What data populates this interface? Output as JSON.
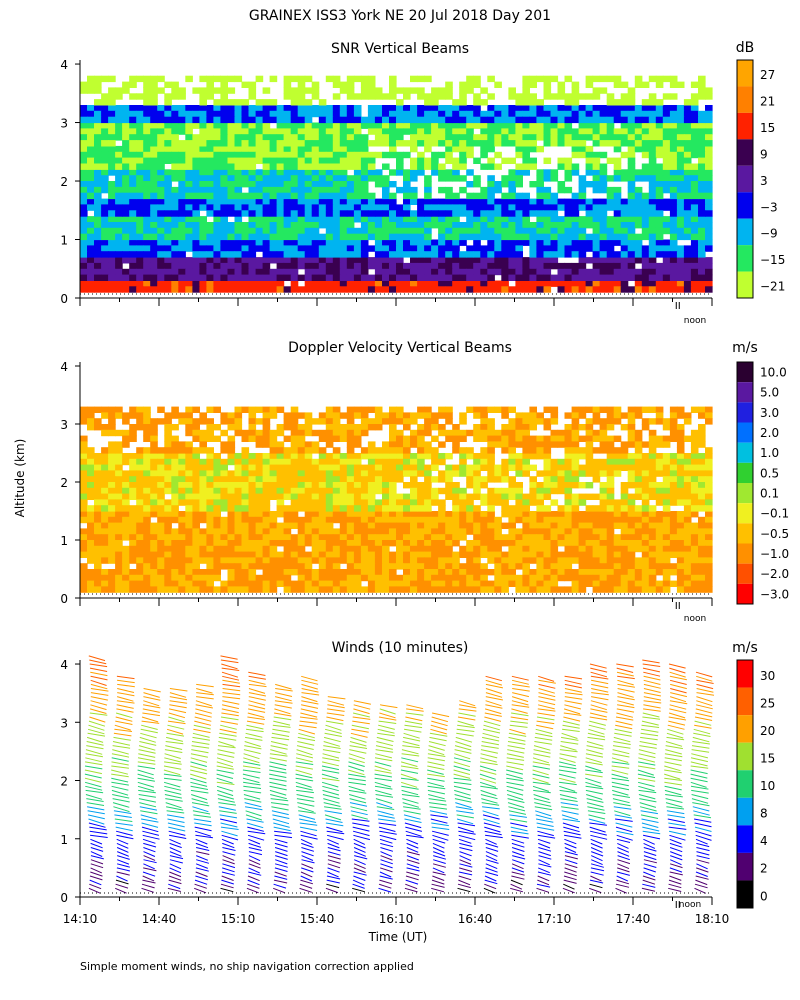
{
  "figure": {
    "title": "GRAINEX ISS3 York NE  20 Jul 2018 Day 201",
    "ylabel": "Altitude (km)",
    "xlabel": "Time (UT)",
    "footnote": "Simple moment winds, no ship navigation correction applied",
    "noon_label": "noon"
  },
  "chart_data": [
    {
      "type": "heatmap",
      "title": "SNR Vertical Beams",
      "unit": "dB",
      "ylim": [
        0,
        4
      ],
      "yticks": [
        "0",
        "1",
        "2",
        "3",
        "4"
      ],
      "xlim": [
        "14:10",
        "18:10"
      ],
      "colorbar": {
        "labels": [
          "27",
          "21",
          "15",
          "9",
          "3",
          "−3",
          "−9",
          "−15",
          "−21"
        ],
        "colors": [
          "#ffa500",
          "#ff8000",
          "#ff2200",
          "#3a0050",
          "#5a18a0",
          "#0000ee",
          "#00b4f0",
          "#24e860",
          "#c0ff30"
        ]
      },
      "layers": [
        {
          "from_km": 0.1,
          "to_km": 0.3,
          "value": 18
        },
        {
          "from_km": 0.3,
          "to_km": 0.7,
          "value": 8
        },
        {
          "from_km": 0.7,
          "to_km": 1.0,
          "value": -3
        },
        {
          "from_km": 1.0,
          "to_km": 1.4,
          "value": -9
        },
        {
          "from_km": 1.4,
          "to_km": 1.7,
          "value": -3
        },
        {
          "from_km": 1.7,
          "to_km": 2.2,
          "value": -9
        },
        {
          "from_km": 2.2,
          "to_km": 2.6,
          "value": -15
        },
        {
          "from_km": 2.6,
          "to_km": 3.0,
          "value": -15
        },
        {
          "from_km": 3.0,
          "to_km": 3.3,
          "value": -3
        },
        {
          "from_km": 3.3,
          "to_km": 3.8,
          "value": -21
        }
      ]
    },
    {
      "type": "heatmap",
      "title": "Doppler Velocity Vertical Beams",
      "unit": "m/s",
      "ylim": [
        0,
        4
      ],
      "yticks": [
        "0",
        "1",
        "2",
        "3",
        "4"
      ],
      "xlim": [
        "14:10",
        "18:10"
      ],
      "colorbar": {
        "labels": [
          "10.0",
          "5.0",
          "3.0",
          "2.0",
          "1.0",
          "0.5",
          "0.1",
          "−0.1",
          "−0.5",
          "−1.0",
          "−2.0",
          "−3.0"
        ],
        "colors": [
          "#2a0030",
          "#5a18a0",
          "#2020e0",
          "#0070ff",
          "#00c0e0",
          "#30d030",
          "#a0e830",
          "#f0f020",
          "#ffc000",
          "#ff9000",
          "#ff5000",
          "#ff0000"
        ]
      },
      "layers": [
        {
          "from_km": 0.1,
          "to_km": 1.5,
          "value": -0.5
        },
        {
          "from_km": 1.5,
          "to_km": 2.5,
          "value": -0.1
        },
        {
          "from_km": 2.5,
          "to_km": 3.3,
          "value": -0.5
        }
      ]
    },
    {
      "type": "barbs",
      "title": "Winds (10 minutes)",
      "unit": "m/s",
      "ylim": [
        0,
        4
      ],
      "yticks": [
        "0",
        "1",
        "2",
        "3",
        "4"
      ],
      "xticks": [
        "14:10",
        "14:40",
        "15:10",
        "15:40",
        "16:10",
        "16:40",
        "17:10",
        "17:40",
        "18:10"
      ],
      "xlim": [
        "14:10",
        "18:10"
      ],
      "colorbar": {
        "labels": [
          "30",
          "25",
          "20",
          "15",
          "10",
          "8",
          "4",
          "2",
          "0"
        ],
        "colors": [
          "#ff0000",
          "#ff6000",
          "#ffa000",
          "#a0e030",
          "#20d070",
          "#00a0f0",
          "#0000ff",
          "#500070",
          "#000000"
        ]
      },
      "profiles": [
        {
          "time": "14:13",
          "top_km": 4.2
        },
        {
          "time": "14:23",
          "top_km": 3.8
        },
        {
          "time": "14:33",
          "top_km": 3.6
        },
        {
          "time": "14:43",
          "top_km": 3.6
        },
        {
          "time": "14:53",
          "top_km": 3.7
        },
        {
          "time": "15:03",
          "top_km": 4.2
        },
        {
          "time": "15:13",
          "top_km": 3.9
        },
        {
          "time": "15:23",
          "top_km": 3.7
        },
        {
          "time": "15:33",
          "top_km": 3.8
        },
        {
          "time": "15:43",
          "top_km": 3.5
        },
        {
          "time": "15:53",
          "top_km": 3.4
        },
        {
          "time": "16:03",
          "top_km": 3.3
        },
        {
          "time": "16:13",
          "top_km": 3.3
        },
        {
          "time": "16:23",
          "top_km": 3.2
        },
        {
          "time": "16:33",
          "top_km": 3.4
        },
        {
          "time": "16:43",
          "top_km": 3.8
        },
        {
          "time": "16:53",
          "top_km": 3.8
        },
        {
          "time": "17:03",
          "top_km": 3.8
        },
        {
          "time": "17:13",
          "top_km": 3.8
        },
        {
          "time": "17:23",
          "top_km": 4.0
        },
        {
          "time": "17:33",
          "top_km": 4.0
        },
        {
          "time": "17:43",
          "top_km": 4.1
        },
        {
          "time": "17:53",
          "top_km": 4.0
        },
        {
          "time": "18:03",
          "top_km": 3.9
        }
      ],
      "speed_by_altitude": [
        {
          "km": 0.2,
          "speed": 3
        },
        {
          "km": 1.0,
          "speed": 6
        },
        {
          "km": 1.5,
          "speed": 10
        },
        {
          "km": 2.0,
          "speed": 14
        },
        {
          "km": 2.5,
          "speed": 17
        },
        {
          "km": 3.0,
          "speed": 20
        },
        {
          "km": 3.5,
          "speed": 23
        },
        {
          "km": 4.0,
          "speed": 27
        }
      ]
    }
  ]
}
